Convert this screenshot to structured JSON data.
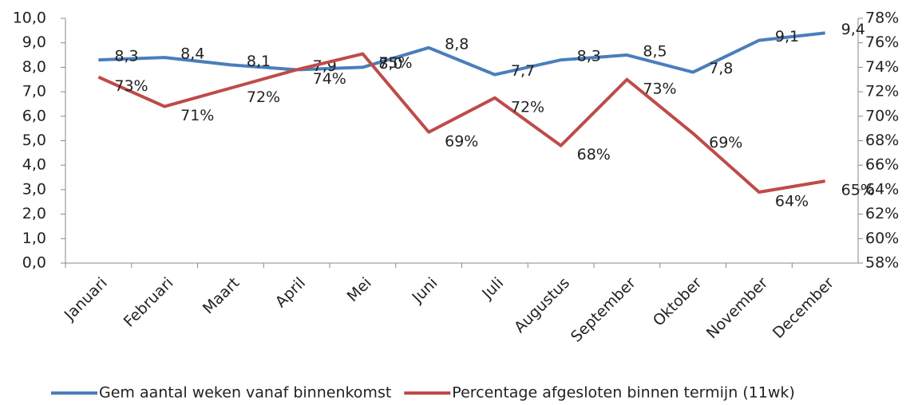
{
  "chart_data": {
    "type": "line",
    "categories": [
      "Januari",
      "Februari",
      "Maart",
      "April",
      "Mei",
      "Juni",
      "Juli",
      "Augustus",
      "September",
      "Oktober",
      "November",
      "December"
    ],
    "series": [
      {
        "name": "Gem aantal weken vanaf binnenkomst",
        "color": "#4a7ebb",
        "values": [
          8.3,
          8.4,
          8.1,
          7.9,
          8.0,
          8.8,
          7.7,
          8.3,
          8.5,
          7.8,
          9.1,
          9.4
        ],
        "value_labels": [
          "8,3",
          "8,4",
          "8,1",
          "7,9",
          "8,0",
          "8,8",
          "7,7",
          "8,3",
          "8,5",
          "7,8",
          "9,1",
          "9,4"
        ]
      },
      {
        "name": "Percentage afgesloten binnen termijn (11wk)",
        "color": "#be4b48",
        "axis": "y2",
        "values": [
          73.2,
          70.8,
          72.3,
          73.8,
          75.1,
          68.7,
          71.5,
          67.6,
          73.0,
          68.6,
          63.8,
          64.7
        ],
        "value_labels": [
          "73%",
          "71%",
          "72%",
          "74%",
          "75%",
          "69%",
          "72%",
          "68%",
          "73%",
          "69%",
          "64%",
          "65%"
        ]
      }
    ],
    "ylim": [
      0,
      10
    ],
    "yticks": [
      {
        "value": 0,
        "label": "0,0"
      },
      {
        "value": 1,
        "label": "1,0"
      },
      {
        "value": 2,
        "label": "2,0"
      },
      {
        "value": 3,
        "label": "3,0"
      },
      {
        "value": 4,
        "label": "4,0"
      },
      {
        "value": 5,
        "label": "5,0"
      },
      {
        "value": 6,
        "label": "6,0"
      },
      {
        "value": 7,
        "label": "7,0"
      },
      {
        "value": 8,
        "label": "8,0"
      },
      {
        "value": 9,
        "label": "9,0"
      },
      {
        "value": 10,
        "label": "10,0"
      }
    ],
    "y2lim": [
      58,
      78
    ],
    "y2ticks": [
      {
        "value": 58,
        "label": "58%"
      },
      {
        "value": 60,
        "label": "60%"
      },
      {
        "value": 62,
        "label": "62%"
      },
      {
        "value": 64,
        "label": "64%"
      },
      {
        "value": 66,
        "label": "66%"
      },
      {
        "value": 68,
        "label": "68%"
      },
      {
        "value": 70,
        "label": "70%"
      },
      {
        "value": 72,
        "label": "72%"
      },
      {
        "value": 74,
        "label": "74%"
      },
      {
        "value": 76,
        "label": "76%"
      },
      {
        "value": 78,
        "label": "78%"
      }
    ],
    "grid": false,
    "legend": "bottom"
  }
}
